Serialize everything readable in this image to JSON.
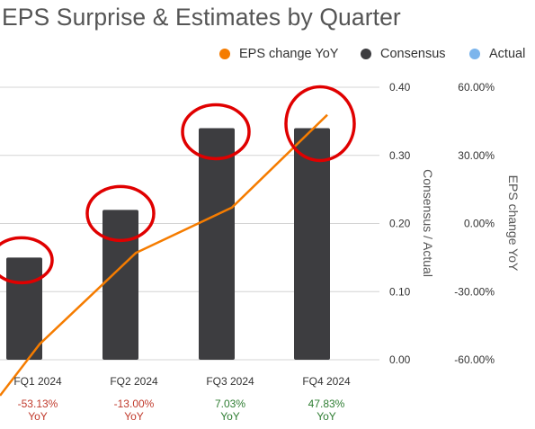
{
  "title": "EPS Surprise & Estimates by Quarter",
  "legend": [
    {
      "label": "EPS change YoY",
      "color": "#f57c00"
    },
    {
      "label": "Consensus",
      "color": "#3d3d40"
    },
    {
      "label": "Actual",
      "color": "#7cb5ec"
    }
  ],
  "chart_data": {
    "type": "bar",
    "categories": [
      "FQ1 2024",
      "FQ2 2024",
      "FQ3 2024",
      "FQ4 2024"
    ],
    "series": [
      {
        "name": "Consensus",
        "values": [
          0.15,
          0.22,
          0.34,
          0.34
        ],
        "color": "#3d3d40"
      },
      {
        "name": "EPS change YoY",
        "type": "line",
        "axis": "right",
        "values": [
          -53.13,
          -13.0,
          7.03,
          47.83
        ],
        "color": "#f57c00"
      }
    ],
    "ylabel_left": "Consensus / Actual",
    "ylabel_right": "EPS change YoY",
    "ylim_left": [
      0,
      0.4
    ],
    "ylim_right": [
      -60,
      60
    ],
    "yticks_left": [
      "0.40",
      "0.30",
      "0.20",
      "0.10",
      "0.00"
    ],
    "yticks_right": [
      "60.00%",
      "30.00%",
      "0.00%",
      "-30.00%",
      "-60.00%"
    ],
    "grid": true,
    "legend_position": "top-right"
  },
  "footer": [
    {
      "quarter": "FQ1 2024",
      "change": "-53.13%",
      "suffix": "YoY",
      "color": "#c0392b"
    },
    {
      "quarter": "FQ2 2024",
      "change": "-13.00%",
      "suffix": "YoY",
      "color": "#c0392b"
    },
    {
      "quarter": "FQ3 2024",
      "change": "7.03%",
      "suffix": "YoY",
      "color": "#2e7d32"
    },
    {
      "quarter": "FQ4 2024",
      "change": "47.83%",
      "suffix": "YoY",
      "color": "#2e7d32"
    }
  ],
  "annotation_color": "#e00000"
}
